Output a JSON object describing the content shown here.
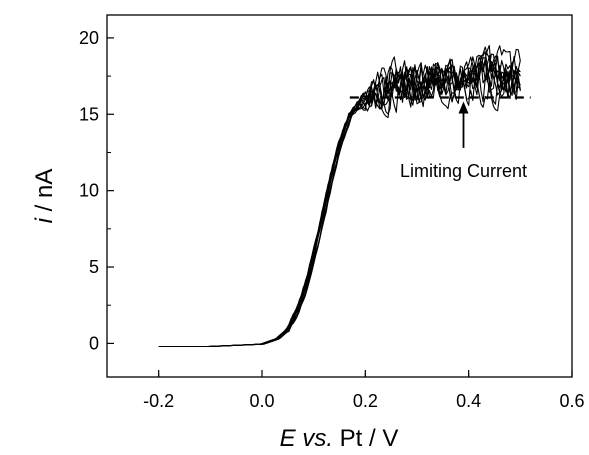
{
  "chart_data": {
    "type": "line",
    "title": "",
    "xlabel": {
      "italic": "E vs.",
      "rest": " Pt / V"
    },
    "ylabel": {
      "italic": "i",
      "rest": " / nA"
    },
    "xlim": [
      -0.3,
      0.6
    ],
    "ylim": [
      -2.2,
      21.5
    ],
    "x_ticks": [
      -0.2,
      0.0,
      0.2,
      0.4,
      0.6
    ],
    "x_tick_labels": [
      "-0.2",
      "0.0",
      "0.2",
      "0.4",
      "0.6"
    ],
    "y_ticks": [
      0,
      5,
      10,
      15,
      20
    ],
    "y_tick_labels": [
      "0",
      "5",
      "10",
      "15",
      "20"
    ],
    "grid": false,
    "line_color": "#000000",
    "series_count": 10,
    "base_curve": {
      "x": [
        -0.2,
        -0.1,
        0.0,
        0.03,
        0.05,
        0.07,
        0.09,
        0.11,
        0.13,
        0.15,
        0.17,
        0.19,
        0.21,
        0.24,
        0.27,
        0.3,
        0.35,
        0.4,
        0.45,
        0.5
      ],
      "y": [
        -0.2,
        -0.2,
        -0.05,
        0.3,
        0.9,
        2.2,
        4.3,
        7.1,
        10.2,
        13.0,
        14.9,
        15.8,
        16.3,
        16.7,
        17.0,
        17.1,
        17.2,
        17.3,
        17.4,
        17.6
      ]
    },
    "plateau_noise_amplitude": 1.6,
    "limiting_current": {
      "value": 16.1,
      "x_range": [
        0.17,
        0.52
      ],
      "label": "Limiting Current",
      "arrow_x": 0.39,
      "label_text_y": 10.9,
      "arrow_from_y": 12.8
    }
  }
}
